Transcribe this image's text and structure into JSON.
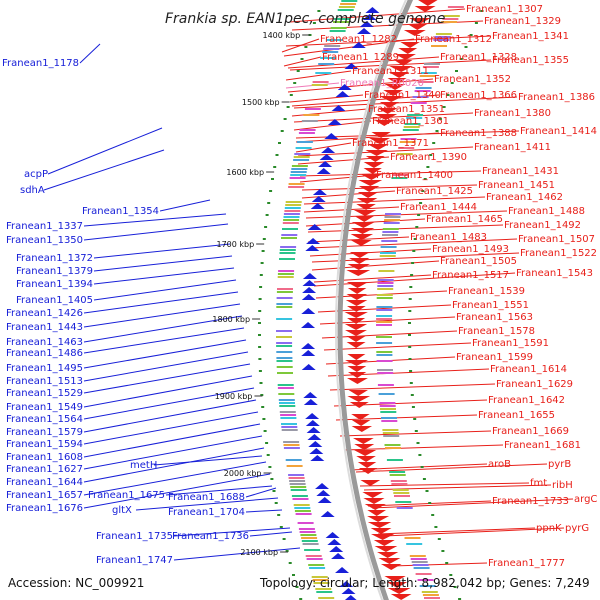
{
  "title": "Frankia sp. EAN1pec, complete genome",
  "footer": {
    "accession": "Accession: NC_009921",
    "info": "Topology: circular; Length: 8,982,042 bp; Genes: 7,249"
  },
  "colors": {
    "forward": "#e8201a",
    "reverse": "#1820d8",
    "backbone": "#9a9a9a",
    "ticks": "#2a8a2a",
    "pink_label": "#f07ab8"
  },
  "kbp_ticks": [
    "1400 kbp",
    "1500 kbp",
    "1600 kbp",
    "1700 kbp",
    "1800 kbp",
    "1900 kbp",
    "2000 kbp",
    "2100 kbp"
  ],
  "left_labels": [
    "Franean1_1178",
    "acpP",
    "sdhA",
    "Franean1_1354",
    "Franean1_1337",
    "Franean1_1350",
    "Franean1_1372",
    "Franean1_1379",
    "Franean1_1394",
    "Franean1_1405",
    "Franean1_1426",
    "Franean1_1443",
    "Franean1_1463",
    "Franean1_1486",
    "Franean1_1495",
    "Franean1_1513",
    "Franean1_1529",
    "Franean1_1549",
    "Franean1_1564",
    "Franean1_1579",
    "Franean1_1594",
    "Franean1_1608",
    "Franean1_1627",
    "Franean1_1644",
    "Franean1_1657",
    "Franean1_1676",
    "metH",
    "Franean1_1675",
    "Franean1_1688",
    "gltX",
    "Franean1_1704",
    "Franean1_1735",
    "Franean1_1736",
    "Franean1_1747"
  ],
  "right_labels": [
    "Franean1_1307",
    "Franean1_1329",
    "Franean1_1282",
    "Franean1_1312",
    "Franean1_1341",
    "Franean1_1289",
    "Franean1_1328",
    "Franean1_1355",
    "Franean1_1311",
    "Franean1_R0020",
    "Franean1_1352",
    "Franean1_1340",
    "Franean1_1366",
    "Franean1_1386",
    "Franean1_1351",
    "Franean1_1380",
    "Franean1_1361",
    "Franean1_1414",
    "Franean1_1388",
    "Franean1_1371",
    "Franean1_1411",
    "Franean1_1390",
    "Franean1_1431",
    "Franean1_1400",
    "Franean1_1451",
    "Franean1_1425",
    "Franean1_1462",
    "Franean1_1444",
    "Franean1_1488",
    "Franean1_1465",
    "Franean1_1492",
    "Franean1_1483",
    "Franean1_1507",
    "Franean1_1493",
    "Franean1_1522",
    "Franean1_1505",
    "Franean1_1517",
    "Franean1_1543",
    "Franean1_1539",
    "Franean1_1551",
    "Franean1_1563",
    "Franean1_1578",
    "Franean1_1591",
    "Franean1_1599",
    "Franean1_1614",
    "Franean1_1629",
    "Franean1_1642",
    "Franean1_1655",
    "Franean1_1669",
    "Franean1_1681",
    "aroB",
    "pyrB",
    "fmt",
    "ribH",
    "Franean1_1733",
    "argC",
    "ppnK",
    "pyrG",
    "Franean1_1777"
  ]
}
